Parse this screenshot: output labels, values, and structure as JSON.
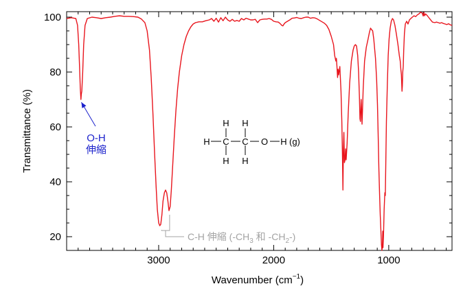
{
  "chart_data": {
    "type": "line",
    "xlabel": "Wavenumber (cm",
    "xlabel_sup": "−1",
    "xlabel_tail": ")",
    "ylabel": "Transmittance (%)",
    "x_reversed": true,
    "xlim": [
      3800,
      450
    ],
    "ylim": [
      15,
      102
    ],
    "grid": false,
    "x_ticks": [
      3000,
      2000,
      1000
    ],
    "x_tick_labels": [
      "3000",
      "2000",
      "1000"
    ],
    "x_minor_step": 100,
    "y_ticks": [
      20,
      40,
      60,
      80,
      100
    ],
    "y_tick_labels": [
      "20",
      "40",
      "60",
      "80",
      "100"
    ],
    "y_minor_step": 5,
    "series": [
      {
        "color": "#e8141c",
        "points": [
          [
            3800,
            99.5
          ],
          [
            3760,
            99.8
          ],
          [
            3720,
            99.5
          ],
          [
            3705,
            97
          ],
          [
            3695,
            90
          ],
          [
            3688,
            82
          ],
          [
            3681,
            74
          ],
          [
            3676,
            70
          ],
          [
            3672,
            72
          ],
          [
            3668,
            73
          ],
          [
            3660,
            80
          ],
          [
            3652,
            90
          ],
          [
            3640,
            97
          ],
          [
            3620,
            99.5
          ],
          [
            3580,
            100
          ],
          [
            3540,
            99.8
          ],
          [
            3500,
            99.5
          ],
          [
            3460,
            99.8
          ],
          [
            3420,
            100
          ],
          [
            3380,
            100.3
          ],
          [
            3340,
            100.5
          ],
          [
            3300,
            100.3
          ],
          [
            3260,
            100.3
          ],
          [
            3220,
            100.2
          ],
          [
            3180,
            100
          ],
          [
            3150,
            99.3
          ],
          [
            3120,
            98
          ],
          [
            3100,
            95
          ],
          [
            3080,
            88
          ],
          [
            3065,
            78
          ],
          [
            3050,
            65
          ],
          [
            3035,
            50
          ],
          [
            3022,
            38
          ],
          [
            3012,
            30
          ],
          [
            3000,
            25
          ],
          [
            2990,
            24
          ],
          [
            2982,
            24.5
          ],
          [
            2972,
            28
          ],
          [
            2962,
            33
          ],
          [
            2950,
            36
          ],
          [
            2940,
            37
          ],
          [
            2930,
            36
          ],
          [
            2920,
            33
          ],
          [
            2910,
            29.5
          ],
          [
            2900,
            31
          ],
          [
            2890,
            37
          ],
          [
            2878,
            46
          ],
          [
            2865,
            56
          ],
          [
            2850,
            66
          ],
          [
            2835,
            74
          ],
          [
            2820,
            80
          ],
          [
            2800,
            86
          ],
          [
            2780,
            90
          ],
          [
            2760,
            93
          ],
          [
            2740,
            95
          ],
          [
            2720,
            96.5
          ],
          [
            2700,
            97.5
          ],
          [
            2680,
            98
          ],
          [
            2650,
            98.3
          ],
          [
            2620,
            98.3
          ],
          [
            2590,
            98.7
          ],
          [
            2560,
            99
          ],
          [
            2540,
            99.5
          ],
          [
            2520,
            98.5
          ],
          [
            2500,
            99.6
          ],
          [
            2480,
            98.2
          ],
          [
            2460,
            99.8
          ],
          [
            2440,
            98.7
          ],
          [
            2420,
            100
          ],
          [
            2400,
            99
          ],
          [
            2380,
            98.5
          ],
          [
            2360,
            99.2
          ],
          [
            2340,
            98.5
          ],
          [
            2320,
            98.8
          ],
          [
            2300,
            98.5
          ],
          [
            2280,
            99.5
          ],
          [
            2260,
            99
          ],
          [
            2240,
            99.6
          ],
          [
            2220,
            99.3
          ],
          [
            2200,
            99
          ],
          [
            2180,
            99
          ],
          [
            2160,
            99.2
          ],
          [
            2140,
            98
          ],
          [
            2120,
            99
          ],
          [
            2100,
            99.2
          ],
          [
            2080,
            99.3
          ],
          [
            2060,
            99.3
          ],
          [
            2040,
            99.5
          ],
          [
            2020,
            99.2
          ],
          [
            2000,
            98.5
          ],
          [
            1980,
            98.3
          ],
          [
            1960,
            98.2
          ],
          [
            1945,
            97.7
          ],
          [
            1930,
            97
          ],
          [
            1920,
            96.8
          ],
          [
            1910,
            97.5
          ],
          [
            1900,
            98
          ],
          [
            1880,
            98.5
          ],
          [
            1860,
            99
          ],
          [
            1840,
            99.6
          ],
          [
            1820,
            99.7
          ],
          [
            1800,
            99.9
          ],
          [
            1780,
            99.6
          ],
          [
            1760,
            99.5
          ],
          [
            1740,
            99.8
          ],
          [
            1720,
            100
          ],
          [
            1700,
            100
          ],
          [
            1680,
            99.6
          ],
          [
            1660,
            99.8
          ],
          [
            1640,
            99.7
          ],
          [
            1620,
            99.3
          ],
          [
            1600,
            98.8
          ],
          [
            1580,
            98.3
          ],
          [
            1560,
            97.8
          ],
          [
            1540,
            97
          ],
          [
            1520,
            95.5
          ],
          [
            1500,
            93
          ],
          [
            1480,
            90
          ],
          [
            1470,
            86
          ],
          [
            1460,
            84
          ],
          [
            1455,
            85
          ],
          [
            1450,
            82
          ],
          [
            1445,
            78
          ],
          [
            1440,
            81
          ],
          [
            1435,
            79
          ],
          [
            1425,
            82
          ],
          [
            1415,
            73
          ],
          [
            1408,
            62
          ],
          [
            1402,
            48
          ],
          [
            1398,
            37
          ],
          [
            1394,
            52
          ],
          [
            1390,
            58
          ],
          [
            1385,
            47
          ],
          [
            1380,
            48
          ],
          [
            1375,
            52
          ],
          [
            1370,
            48
          ],
          [
            1362,
            54
          ],
          [
            1352,
            65
          ],
          [
            1340,
            76
          ],
          [
            1325,
            84
          ],
          [
            1310,
            88
          ],
          [
            1300,
            89.5
          ],
          [
            1290,
            90
          ],
          [
            1280,
            89.5
          ],
          [
            1270,
            86
          ],
          [
            1262,
            80
          ],
          [
            1255,
            71
          ],
          [
            1250,
            63
          ],
          [
            1246,
            62
          ],
          [
            1243,
            66
          ],
          [
            1240,
            70
          ],
          [
            1236,
            66
          ],
          [
            1232,
            61
          ],
          [
            1228,
            66
          ],
          [
            1222,
            74
          ],
          [
            1210,
            84
          ],
          [
            1195,
            89
          ],
          [
            1180,
            92
          ],
          [
            1168,
            94.5
          ],
          [
            1158,
            96
          ],
          [
            1150,
            95.5
          ],
          [
            1140,
            95
          ],
          [
            1130,
            92
          ],
          [
            1115,
            85
          ],
          [
            1105,
            77
          ],
          [
            1098,
            68
          ],
          [
            1092,
            57
          ],
          [
            1086,
            45
          ],
          [
            1080,
            36
          ],
          [
            1074,
            28
          ],
          [
            1068,
            22
          ],
          [
            1063,
            17
          ],
          [
            1059,
            15
          ],
          [
            1055,
            17
          ],
          [
            1052,
            22
          ],
          [
            1050,
            16
          ],
          [
            1046,
            20
          ],
          [
            1040,
            30
          ],
          [
            1034,
            36
          ],
          [
            1030,
            35
          ],
          [
            1026,
            45
          ],
          [
            1020,
            62
          ],
          [
            1012,
            76
          ],
          [
            1005,
            86
          ],
          [
            997,
            92
          ],
          [
            988,
            96
          ],
          [
            978,
            98.5
          ],
          [
            968,
            99.5
          ],
          [
            958,
            99
          ],
          [
            946,
            97
          ],
          [
            934,
            94
          ],
          [
            920,
            90
          ],
          [
            908,
            86
          ],
          [
            900,
            84
          ],
          [
            895,
            81
          ],
          [
            890,
            79
          ],
          [
            885,
            73
          ],
          [
            882,
            75
          ],
          [
            878,
            80
          ],
          [
            874,
            82
          ],
          [
            870,
            88
          ],
          [
            864,
            94
          ],
          [
            856,
            97.5
          ],
          [
            845,
            98.5
          ],
          [
            833,
            97.5
          ],
          [
            820,
            99
          ],
          [
            808,
            99.5
          ],
          [
            795,
            100
          ],
          [
            780,
            100.5
          ],
          [
            766,
            100.2
          ],
          [
            752,
            100.8
          ],
          [
            738,
            101.2
          ],
          [
            722,
            101.8
          ],
          [
            710,
            101.5
          ],
          [
            700,
            100.4
          ],
          [
            694,
            101.8
          ],
          [
            688,
            100.5
          ],
          [
            680,
            101.2
          ],
          [
            668,
            100.7
          ],
          [
            655,
            100
          ],
          [
            640,
            99.2
          ],
          [
            620,
            98.2
          ],
          [
            600,
            98
          ],
          [
            585,
            98.2
          ],
          [
            570,
            98
          ],
          [
            555,
            97.8
          ],
          [
            540,
            98
          ],
          [
            525,
            97.7
          ],
          [
            510,
            97.5
          ],
          [
            495,
            97.3
          ],
          [
            480,
            97.6
          ],
          [
            465,
            97.2
          ],
          [
            450,
            97
          ]
        ]
      }
    ],
    "annotations": {
      "oh_label_line1": "O-H",
      "oh_label_line2": "伸縮",
      "oh_color": "#1c22cc",
      "oh_target_x": 3672,
      "ch_label_parts": [
        "C-H 伸縮 (-CH",
        "3",
        " 和 -CH",
        "2",
        "-)"
      ],
      "ch_color": "#a3a3a3",
      "ch_marks_x": [
        2975,
        2905
      ]
    },
    "molecule": {
      "atoms": [
        "H",
        "C",
        "C",
        "O",
        "H",
        "H",
        "H",
        "H",
        "H",
        "H"
      ],
      "phase": "(g)"
    }
  }
}
